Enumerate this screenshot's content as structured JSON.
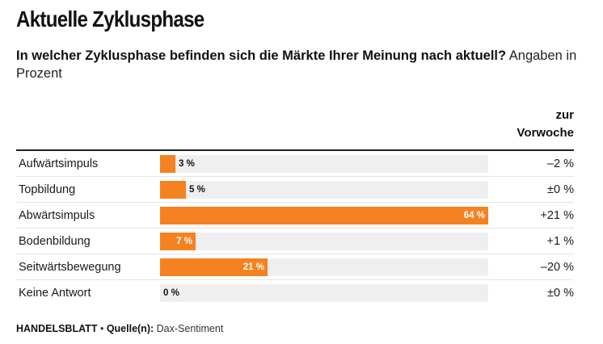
{
  "title": "Aktuelle Zyklusphase",
  "subtitle": {
    "question": "In welcher Zyklusphase befinden sich die Märkte Ihrer Meinung nach aktuell?",
    "note": "Angaben in Prozent"
  },
  "column_header": {
    "line1": "zur",
    "line2": "Vorwoche"
  },
  "chart_data": {
    "type": "bar",
    "orientation": "horizontal",
    "categories": [
      "Aufwärtsimpuls",
      "Topbildung",
      "Abwärtsimpuls",
      "Bodenbildung",
      "Seitwärtsbewegung",
      "Keine Antwort"
    ],
    "values": [
      3,
      5,
      64,
      7,
      21,
      0
    ],
    "value_labels": [
      "3 %",
      "5 %",
      "64 %",
      "7 %",
      "21 %",
      "0 %"
    ],
    "change_vs_previous_week": [
      "–2 %",
      "±0 %",
      "+21 %",
      "+1 %",
      "–20 %",
      "±0 %"
    ],
    "xlim": [
      0,
      64
    ],
    "colors": {
      "bar": "#f58220",
      "track": "#efefef"
    }
  },
  "footer": {
    "brand": "HANDELSBLATT",
    "separator": "•",
    "source_label": "Quelle(n):",
    "source": "Dax-Sentiment"
  }
}
